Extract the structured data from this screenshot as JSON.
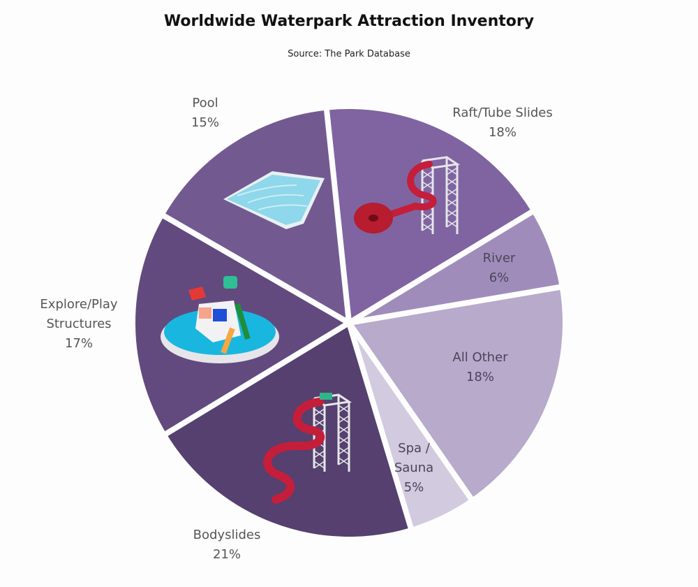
{
  "chart_data": {
    "type": "pie",
    "title": "Worldwide Waterpark Attraction Inventory",
    "subtitle": "Source: The Park Database",
    "start_angle_deg": -6,
    "direction": "clockwise",
    "slices": [
      {
        "label": [
          "Raft/Tube Slides"
        ],
        "value": 18,
        "value_label": "18%",
        "color": "#7f64a1",
        "icon": "raft-slide-icon"
      },
      {
        "label": [
          "River"
        ],
        "value": 6,
        "value_label": "6%",
        "color": "#a08cba",
        "icon": ""
      },
      {
        "label": [
          "All Other"
        ],
        "value": 18,
        "value_label": "18%",
        "color": "#b7aacb",
        "icon": ""
      },
      {
        "label": [
          "Spa /",
          "Sauna"
        ],
        "value": 5,
        "value_label": "5%",
        "color": "#d2cadf",
        "icon": ""
      },
      {
        "label": [
          "Bodyslides"
        ],
        "value": 21,
        "value_label": "21%",
        "color": "#55406f",
        "icon": "bodyslide-icon"
      },
      {
        "label": [
          "Explore/Play",
          "Structures"
        ],
        "value": 17,
        "value_label": "17%",
        "color": "#624a7f",
        "icon": "play-structure-icon"
      },
      {
        "label": [
          "Pool"
        ],
        "value": 15,
        "value_label": "15%",
        "color": "#725a91",
        "icon": "pool-icon"
      }
    ]
  }
}
